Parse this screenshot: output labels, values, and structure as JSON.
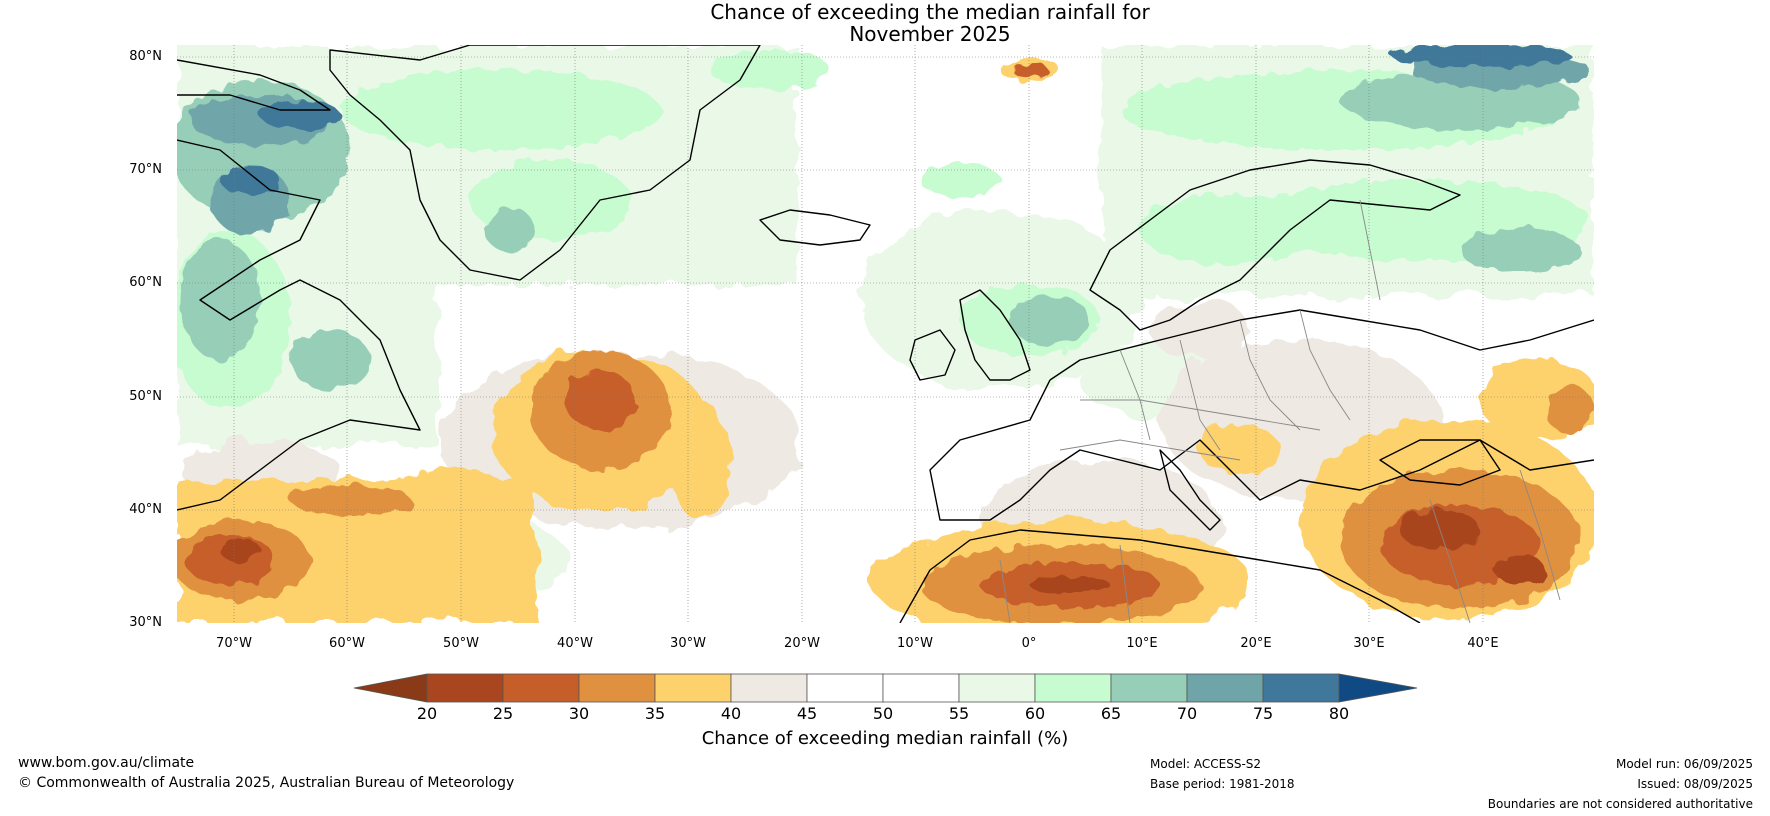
{
  "title": {
    "line1": "Chance of exceeding the median rainfall for",
    "line2": "November 2025"
  },
  "lat_labels": [
    "80°N",
    "70°N",
    "60°N",
    "50°N",
    "40°N",
    "30°N"
  ],
  "lon_labels": [
    "70°W",
    "60°W",
    "50°W",
    "40°W",
    "30°W",
    "20°W",
    "10°W",
    "0°",
    "10°E",
    "20°E",
    "30°E",
    "40°E"
  ],
  "colorbar": {
    "ticks": [
      "20",
      "25",
      "30",
      "35",
      "40",
      "45",
      "50",
      "55",
      "60",
      "65",
      "70",
      "75",
      "80"
    ],
    "colors": {
      "under": "#8a3a17",
      "bins": [
        "#a9451f",
        "#c65e2a",
        "#e0913f",
        "#fdd26c",
        "#efe9e3",
        "#ffffff",
        "#ffffff",
        "#e9f8e7",
        "#c7fbd0",
        "#97ceb8",
        "#6fa5a9",
        "#3f789a"
      ],
      "over": "#0f4a84"
    },
    "label": "Chance of exceeding median rainfall (%)"
  },
  "footer": {
    "website": "www.bom.gov.au/climate",
    "copyright": "© Commonwealth of Australia 2025, Australian Bureau of Meteorology",
    "model": "Model: ACCESS-S2",
    "base_period": "Base period: 1981-2018",
    "model_run": "Model run: 06/09/2025",
    "issued": "Issued: 08/09/2025",
    "disclaimer": "Boundaries are not considered authoritative"
  }
}
